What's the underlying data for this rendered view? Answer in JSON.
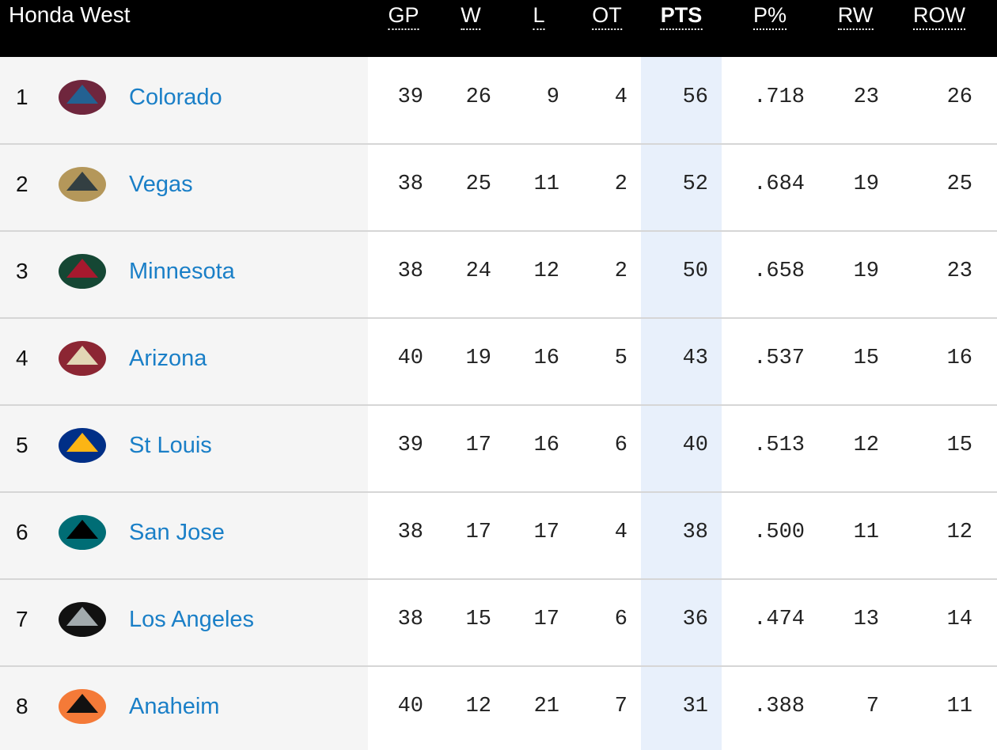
{
  "header": {
    "title": "Honda West",
    "columns": [
      "GP",
      "W",
      "L",
      "OT",
      "PTS",
      "P%",
      "RW",
      "ROW"
    ]
  },
  "rows": [
    {
      "rank": 1,
      "team": "Colorado",
      "stats": [
        39,
        26,
        9,
        4,
        56,
        ".718",
        23,
        26
      ]
    },
    {
      "rank": 2,
      "team": "Vegas",
      "stats": [
        38,
        25,
        11,
        2,
        52,
        ".684",
        19,
        25
      ]
    },
    {
      "rank": 3,
      "team": "Minnesota",
      "stats": [
        38,
        24,
        12,
        2,
        50,
        ".658",
        19,
        23
      ]
    },
    {
      "rank": 4,
      "team": "Arizona",
      "stats": [
        40,
        19,
        16,
        5,
        43,
        ".537",
        15,
        16
      ]
    },
    {
      "rank": 5,
      "team": "St Louis",
      "stats": [
        39,
        17,
        16,
        6,
        40,
        ".513",
        12,
        15
      ]
    },
    {
      "rank": 6,
      "team": "San Jose",
      "stats": [
        38,
        17,
        17,
        4,
        38,
        ".500",
        11,
        12
      ]
    },
    {
      "rank": 7,
      "team": "Los Angeles",
      "stats": [
        38,
        15,
        17,
        6,
        36,
        ".474",
        13,
        14
      ]
    },
    {
      "rank": 8,
      "team": "Anaheim",
      "stats": [
        40,
        12,
        21,
        7,
        31,
        ".388",
        7,
        11
      ]
    }
  ]
}
